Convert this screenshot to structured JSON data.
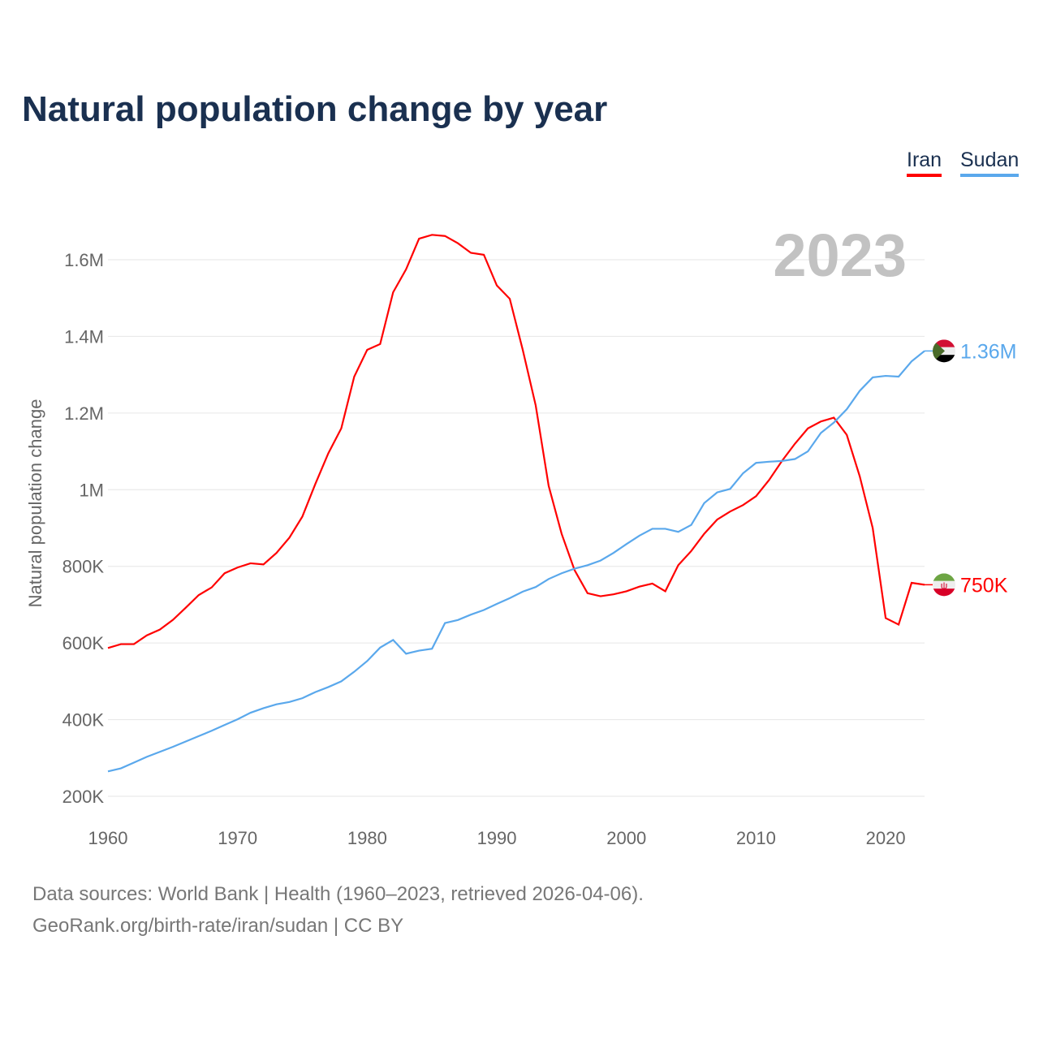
{
  "chart_data": {
    "type": "line",
    "title": "Natural population change by year",
    "ylabel": "Natural population change",
    "xlabel": "",
    "year_label": "2023",
    "xlim": [
      1960,
      2023
    ],
    "ylim": [
      200000,
      1600000
    ],
    "grid": true,
    "legend_position": "top-right",
    "x_ticks": [
      1960,
      1970,
      1980,
      1990,
      2000,
      2010,
      2020
    ],
    "x_tick_labels": [
      "1960",
      "1970",
      "1980",
      "1990",
      "2000",
      "2010",
      "2020"
    ],
    "y_ticks": [
      200000,
      400000,
      600000,
      800000,
      1000000,
      1200000,
      1400000,
      1600000
    ],
    "y_tick_labels": [
      "200K",
      "400K",
      "600K",
      "800K",
      "1M",
      "1.2M",
      "1.4M",
      "1.6M"
    ],
    "x_start": 1960,
    "series": [
      {
        "name": "Iran",
        "color": "#ff0000",
        "end_label": "750K",
        "flag": "iran-flag",
        "values": [
          587,
          597,
          597,
          620,
          635,
          660,
          692,
          725,
          745,
          782,
          797,
          808,
          805,
          835,
          875,
          930,
          1015,
          1095,
          1160,
          1295,
          1365,
          1380,
          1515,
          1575,
          1655,
          1665,
          1662,
          1643,
          1618,
          1613,
          1533,
          1498,
          1365,
          1220,
          1010,
          885,
          790,
          730,
          722,
          727,
          735,
          747,
          755,
          735,
          803,
          840,
          885,
          922,
          943,
          960,
          983,
          1025,
          1075,
          1120,
          1160,
          1178,
          1188,
          1143,
          1035,
          900,
          665,
          648,
          757,
          752
        ]
      },
      {
        "name": "Sudan",
        "color": "#5aa8ec",
        "end_label": "1.36M",
        "flag": "sudan-flag",
        "values": [
          265,
          273,
          288,
          303,
          316,
          329,
          343,
          357,
          371,
          386,
          401,
          418,
          430,
          440,
          446,
          456,
          472,
          485,
          500,
          525,
          553,
          588,
          608,
          572,
          580,
          585,
          652,
          660,
          674,
          686,
          702,
          717,
          734,
          746,
          767,
          782,
          794,
          803,
          815,
          835,
          858,
          880,
          898,
          898,
          890,
          908,
          965,
          993,
          1002,
          1043,
          1070,
          1073,
          1075,
          1080,
          1100,
          1148,
          1175,
          1210,
          1258,
          1293,
          1297,
          1295,
          1335,
          1362
        ]
      }
    ],
    "value_unit": "thousands"
  },
  "footer": {
    "line1": "Data sources: World Bank | Health (1960–2023, retrieved 2026-04-06).",
    "line2": "GeoRank.org/birth-rate/iran/sudan | CC BY"
  }
}
